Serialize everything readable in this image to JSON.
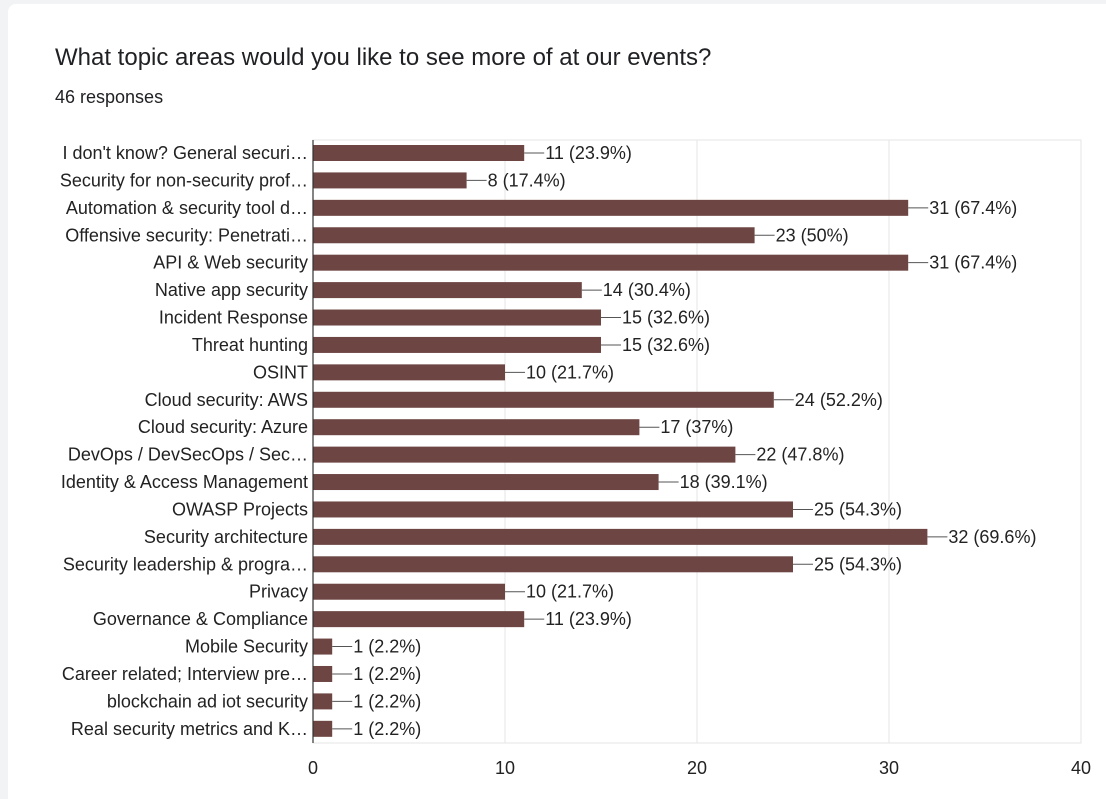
{
  "title": "What topic areas would you like to see more of at our events?",
  "subtitle": "46 responses",
  "colors": {
    "bar": "#6d4643",
    "grid": "#e6e6e6",
    "axis": "#333333",
    "text": "#222222"
  },
  "chart_data": {
    "type": "bar",
    "orientation": "horizontal",
    "categories": [
      "I don't know? General securi…",
      "Security for non-security prof…",
      "Automation & security tool d…",
      "Offensive security: Penetrati…",
      "API & Web security",
      "Native app security",
      "Incident Response",
      "Threat hunting",
      "OSINT",
      "Cloud security: AWS",
      "Cloud security: Azure",
      "DevOps / DevSecOps / Sec…",
      "Identity & Access Management",
      "OWASP Projects",
      "Security architecture",
      "Security leadership & progra…",
      "Privacy",
      "Governance & Compliance",
      "Mobile Security",
      "Career related; Interview pre…",
      "blockchain ad iot security",
      "Real security metrics and K…"
    ],
    "values": [
      11,
      8,
      31,
      23,
      31,
      14,
      15,
      15,
      10,
      24,
      17,
      22,
      18,
      25,
      32,
      25,
      10,
      11,
      1,
      1,
      1,
      1
    ],
    "data_labels": [
      "11 (23.9%)",
      "8 (17.4%)",
      "31 (67.4%)",
      "23 (50%)",
      "31 (67.4%)",
      "14 (30.4%)",
      "15 (32.6%)",
      "15 (32.6%)",
      "10 (21.7%)",
      "24 (52.2%)",
      "17 (37%)",
      "22 (47.8%)",
      "18 (39.1%)",
      "25 (54.3%)",
      "32 (69.6%)",
      "25 (54.3%)",
      "10 (21.7%)",
      "11 (23.9%)",
      "1 (2.2%)",
      "1 (2.2%)",
      "1 (2.2%)",
      "1 (2.2%)"
    ],
    "xlim": [
      0,
      40
    ],
    "xticks": [
      "0",
      "10",
      "20",
      "30",
      "40"
    ],
    "grid": true,
    "xlabel": "",
    "ylabel": ""
  }
}
